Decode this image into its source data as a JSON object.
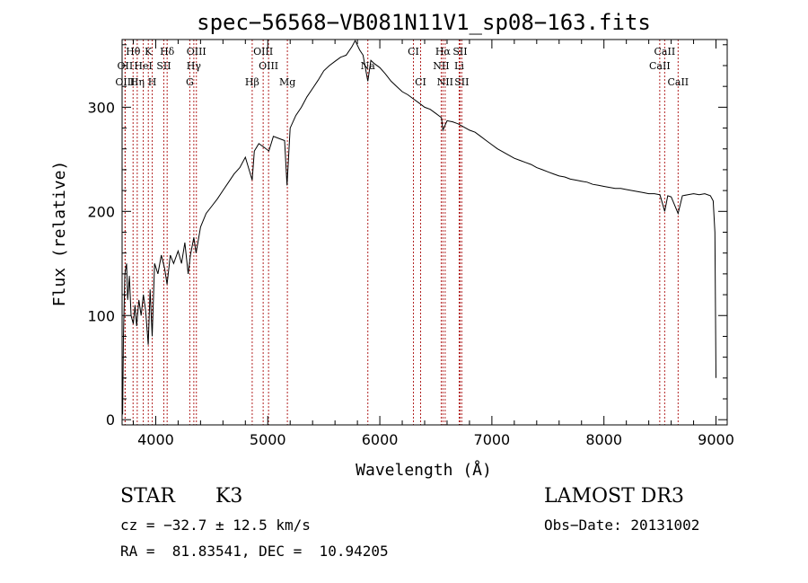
{
  "chart_data": {
    "type": "line",
    "title": "spec−56568−VB081N11V1_sp08−163.fits",
    "xlabel": "Wavelength (Å)",
    "ylabel": "Flux (relative)",
    "xlim": [
      3700,
      9100
    ],
    "ylim": [
      -5,
      365
    ],
    "x_ticks": [
      {
        "value": 4000,
        "label": "4000"
      },
      {
        "value": 5000,
        "label": "5000"
      },
      {
        "value": 6000,
        "label": "6000"
      },
      {
        "value": 7000,
        "label": "7000"
      },
      {
        "value": 8000,
        "label": "8000"
      },
      {
        "value": 9000,
        "label": "9000"
      }
    ],
    "y_ticks": [
      {
        "value": 0,
        "label": "0"
      },
      {
        "value": 100,
        "label": "100"
      },
      {
        "value": 200,
        "label": "200"
      },
      {
        "value": 300,
        "label": "300"
      }
    ],
    "line_marker_color": "#b22222",
    "spectrum_line_color": "#000000",
    "spectrum": [
      [
        3705,
        5
      ],
      [
        3712,
        80
      ],
      [
        3725,
        140
      ],
      [
        3740,
        150
      ],
      [
        3750,
        115
      ],
      [
        3765,
        138
      ],
      [
        3780,
        100
      ],
      [
        3800,
        92
      ],
      [
        3815,
        110
      ],
      [
        3830,
        90
      ],
      [
        3850,
        115
      ],
      [
        3870,
        100
      ],
      [
        3890,
        120
      ],
      [
        3910,
        105
      ],
      [
        3933,
        72
      ],
      [
        3950,
        125
      ],
      [
        3968,
        80
      ],
      [
        3990,
        150
      ],
      [
        4020,
        140
      ],
      [
        4050,
        158
      ],
      [
        4080,
        145
      ],
      [
        4101,
        130
      ],
      [
        4130,
        158
      ],
      [
        4160,
        150
      ],
      [
        4200,
        162
      ],
      [
        4230,
        150
      ],
      [
        4260,
        170
      ],
      [
        4290,
        140
      ],
      [
        4310,
        158
      ],
      [
        4340,
        175
      ],
      [
        4360,
        160
      ],
      [
        4400,
        185
      ],
      [
        4450,
        198
      ],
      [
        4500,
        205
      ],
      [
        4550,
        212
      ],
      [
        4600,
        220
      ],
      [
        4650,
        228
      ],
      [
        4700,
        236
      ],
      [
        4750,
        242
      ],
      [
        4800,
        252
      ],
      [
        4861,
        230
      ],
      [
        4880,
        258
      ],
      [
        4920,
        265
      ],
      [
        4960,
        262
      ],
      [
        5010,
        258
      ],
      [
        5050,
        272
      ],
      [
        5100,
        270
      ],
      [
        5150,
        268
      ],
      [
        5172,
        225
      ],
      [
        5200,
        280
      ],
      [
        5250,
        292
      ],
      [
        5300,
        300
      ],
      [
        5350,
        310
      ],
      [
        5400,
        318
      ],
      [
        5450,
        326
      ],
      [
        5500,
        335
      ],
      [
        5550,
        340
      ],
      [
        5600,
        344
      ],
      [
        5650,
        348
      ],
      [
        5700,
        350
      ],
      [
        5750,
        358
      ],
      [
        5780,
        364
      ],
      [
        5820,
        355
      ],
      [
        5850,
        350
      ],
      [
        5893,
        325
      ],
      [
        5920,
        345
      ],
      [
        5950,
        342
      ],
      [
        6000,
        338
      ],
      [
        6050,
        332
      ],
      [
        6100,
        325
      ],
      [
        6150,
        320
      ],
      [
        6200,
        315
      ],
      [
        6250,
        312
      ],
      [
        6300,
        308
      ],
      [
        6350,
        304
      ],
      [
        6400,
        300
      ],
      [
        6450,
        298
      ],
      [
        6500,
        294
      ],
      [
        6550,
        290
      ],
      [
        6563,
        278
      ],
      [
        6600,
        287
      ],
      [
        6650,
        286
      ],
      [
        6700,
        284
      ],
      [
        6750,
        281
      ],
      [
        6800,
        278
      ],
      [
        6850,
        276
      ],
      [
        6900,
        272
      ],
      [
        6950,
        268
      ],
      [
        7000,
        264
      ],
      [
        7050,
        260
      ],
      [
        7100,
        257
      ],
      [
        7150,
        254
      ],
      [
        7200,
        251
      ],
      [
        7250,
        249
      ],
      [
        7300,
        247
      ],
      [
        7350,
        245
      ],
      [
        7400,
        242
      ],
      [
        7450,
        240
      ],
      [
        7500,
        238
      ],
      [
        7550,
        236
      ],
      [
        7600,
        234
      ],
      [
        7650,
        233
      ],
      [
        7700,
        231
      ],
      [
        7750,
        230
      ],
      [
        7800,
        229
      ],
      [
        7850,
        228
      ],
      [
        7900,
        226
      ],
      [
        7950,
        225
      ],
      [
        8000,
        224
      ],
      [
        8050,
        223
      ],
      [
        8100,
        222
      ],
      [
        8150,
        222
      ],
      [
        8200,
        221
      ],
      [
        8250,
        220
      ],
      [
        8300,
        219
      ],
      [
        8350,
        218
      ],
      [
        8400,
        217
      ],
      [
        8450,
        217
      ],
      [
        8500,
        216
      ],
      [
        8542,
        200
      ],
      [
        8570,
        215
      ],
      [
        8600,
        214
      ],
      [
        8662,
        198
      ],
      [
        8700,
        215
      ],
      [
        8750,
        216
      ],
      [
        8800,
        217
      ],
      [
        8850,
        216
      ],
      [
        8900,
        217
      ],
      [
        8950,
        215
      ],
      [
        8975,
        210
      ],
      [
        8990,
        180
      ],
      [
        9000,
        40
      ]
    ],
    "lines": [
      {
        "label": "Hθ",
        "wl": 3798,
        "row": 0
      },
      {
        "label": "K",
        "wl": 3934,
        "row": 0
      },
      {
        "label": "Hδ",
        "wl": 4102,
        "row": 0
      },
      {
        "label": "OIII",
        "wl": 4363,
        "row": 0
      },
      {
        "label": "OIII",
        "wl": 4959,
        "row": 0
      },
      {
        "label": "CI",
        "wl": 6300,
        "row": 0
      },
      {
        "label": "Hα",
        "wl": 6563,
        "row": 0
      },
      {
        "label": "SII",
        "wl": 6716,
        "row": 0
      },
      {
        "label": "CaII",
        "wl": 8542,
        "row": 0
      },
      {
        "label": "OII",
        "wl": 3727,
        "row": 1
      },
      {
        "label": "HeI",
        "wl": 3889,
        "row": 1
      },
      {
        "label": "SII",
        "wl": 4072,
        "row": 1
      },
      {
        "label": "Hγ",
        "wl": 4340,
        "row": 1
      },
      {
        "label": "OIII",
        "wl": 5007,
        "row": 1
      },
      {
        "label": "Na",
        "wl": 5893,
        "row": 1
      },
      {
        "label": "NII",
        "wl": 6548,
        "row": 1
      },
      {
        "label": "Li",
        "wl": 6708,
        "row": 1
      },
      {
        "label": "CaII",
        "wl": 8498,
        "row": 1
      },
      {
        "label": "OIII",
        "wl": 3727,
        "row": 2
      },
      {
        "label": "Hη",
        "wl": 3835,
        "row": 2
      },
      {
        "label": "H",
        "wl": 3969,
        "row": 2
      },
      {
        "label": "G",
        "wl": 4304,
        "row": 2
      },
      {
        "label": "Hβ",
        "wl": 4861,
        "row": 2
      },
      {
        "label": "Mg",
        "wl": 5175,
        "row": 2
      },
      {
        "label": "CI",
        "wl": 6364,
        "row": 2
      },
      {
        "label": "NII",
        "wl": 6583,
        "row": 2
      },
      {
        "label": "SII",
        "wl": 6731,
        "row": 2
      },
      {
        "label": "CaII",
        "wl": 8662,
        "row": 2
      }
    ]
  },
  "info": {
    "object_class": "STAR",
    "subclass": "K3",
    "survey": "LAMOST DR3",
    "cz": "cz = −32.7 ± 12.5 km/s",
    "obs_date": "Obs−Date: 20131002",
    "radec": "RA =  81.83541, DEC =  10.94205"
  }
}
